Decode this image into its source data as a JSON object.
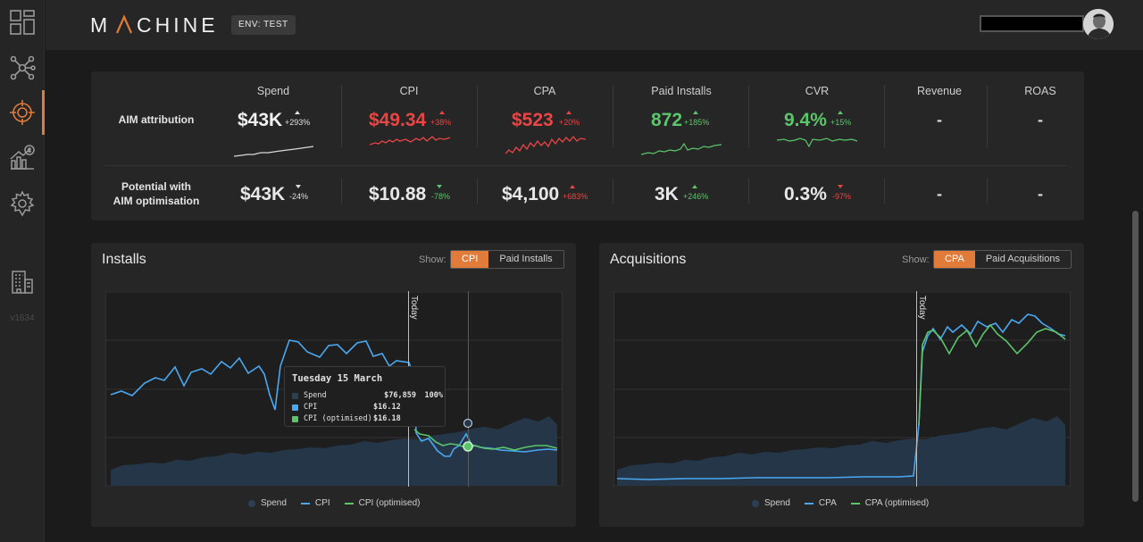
{
  "app": {
    "logo": "MACHINE",
    "env_badge": "ENV: TEST",
    "version": "v1634"
  },
  "sidebar": {
    "items": [
      "dashboard-icon",
      "network-icon",
      "target-icon",
      "growth-chart-icon",
      "settings-icon",
      "building-icon"
    ],
    "active": "target-icon"
  },
  "metrics": {
    "columns": [
      "Spend",
      "CPI",
      "CPA",
      "Paid Installs",
      "CVR",
      "Revenue",
      "ROAS"
    ],
    "rows": [
      {
        "label": "AIM attribution",
        "cells": [
          {
            "value": "$43K",
            "delta": "+293%",
            "dir": "up",
            "color": "#f0f0f0",
            "delta_color": "#e0e0e0"
          },
          {
            "value": "$49.34",
            "delta": "+38%",
            "dir": "up",
            "color": "#e84545",
            "delta_color": "#e84545"
          },
          {
            "value": "$523",
            "delta": "+20%",
            "dir": "up",
            "color": "#e84545",
            "delta_color": "#e84545"
          },
          {
            "value": "872",
            "delta": "+185%",
            "dir": "up",
            "color": "#5cc46a",
            "delta_color": "#5cc46a"
          },
          {
            "value": "9.4%",
            "delta": "+15%",
            "dir": "up",
            "color": "#5cc46a",
            "delta_color": "#5cc46a"
          },
          {
            "value": "-"
          },
          {
            "value": "-"
          }
        ]
      },
      {
        "label_line1": "Potential with",
        "label_line2": "AIM optimisation",
        "cells": [
          {
            "value": "$43K",
            "delta": "-24%",
            "dir": "down",
            "color": "#e8e8e8",
            "delta_color": "#e0e0e0"
          },
          {
            "value": "$10.88",
            "delta": "-78%",
            "dir": "down",
            "color": "#e8e8e8",
            "delta_color": "#5cc46a"
          },
          {
            "value": "$4,100",
            "delta": "+683%",
            "dir": "up",
            "color": "#e8e8e8",
            "delta_color": "#e84545"
          },
          {
            "value": "3K",
            "delta": "+246%",
            "dir": "up",
            "color": "#e8e8e8",
            "delta_color": "#5cc46a"
          },
          {
            "value": "0.3%",
            "delta": "-97%",
            "dir": "down",
            "color": "#e8e8e8",
            "delta_color": "#e84545"
          },
          {
            "value": "-"
          },
          {
            "value": "-"
          }
        ]
      }
    ]
  },
  "installs_panel": {
    "title": "Installs",
    "show_label": "Show:",
    "options": [
      "CPI",
      "Paid Installs"
    ],
    "active": "CPI",
    "today_label": "Today",
    "legend": [
      "Spend",
      "CPI",
      "CPI (optimised)"
    ],
    "tooltip": {
      "title": "Tuesday 15 March",
      "rows": [
        {
          "name": "Spend",
          "value": "$76,859",
          "pct": "100%",
          "color": "#2b3f55"
        },
        {
          "name": "CPI",
          "value": "$16.12",
          "pct": "",
          "color": "#4aa8f0"
        },
        {
          "name": "CPI (optimised)",
          "value": "$16.18",
          "pct": "",
          "color": "#5cc46a"
        }
      ]
    }
  },
  "acquisitions_panel": {
    "title": "Acquisitions",
    "show_label": "Show:",
    "options": [
      "CPA",
      "Paid Acquisitions"
    ],
    "active": "CPA",
    "today_label": "Today",
    "legend": [
      "Spend",
      "CPA",
      "CPA (optimised)"
    ]
  },
  "colors": {
    "accent": "#e07b39",
    "spend": "#2b3f55",
    "cpi": "#4aa8f0",
    "optimised": "#5cc46a",
    "negative": "#e84545"
  }
}
